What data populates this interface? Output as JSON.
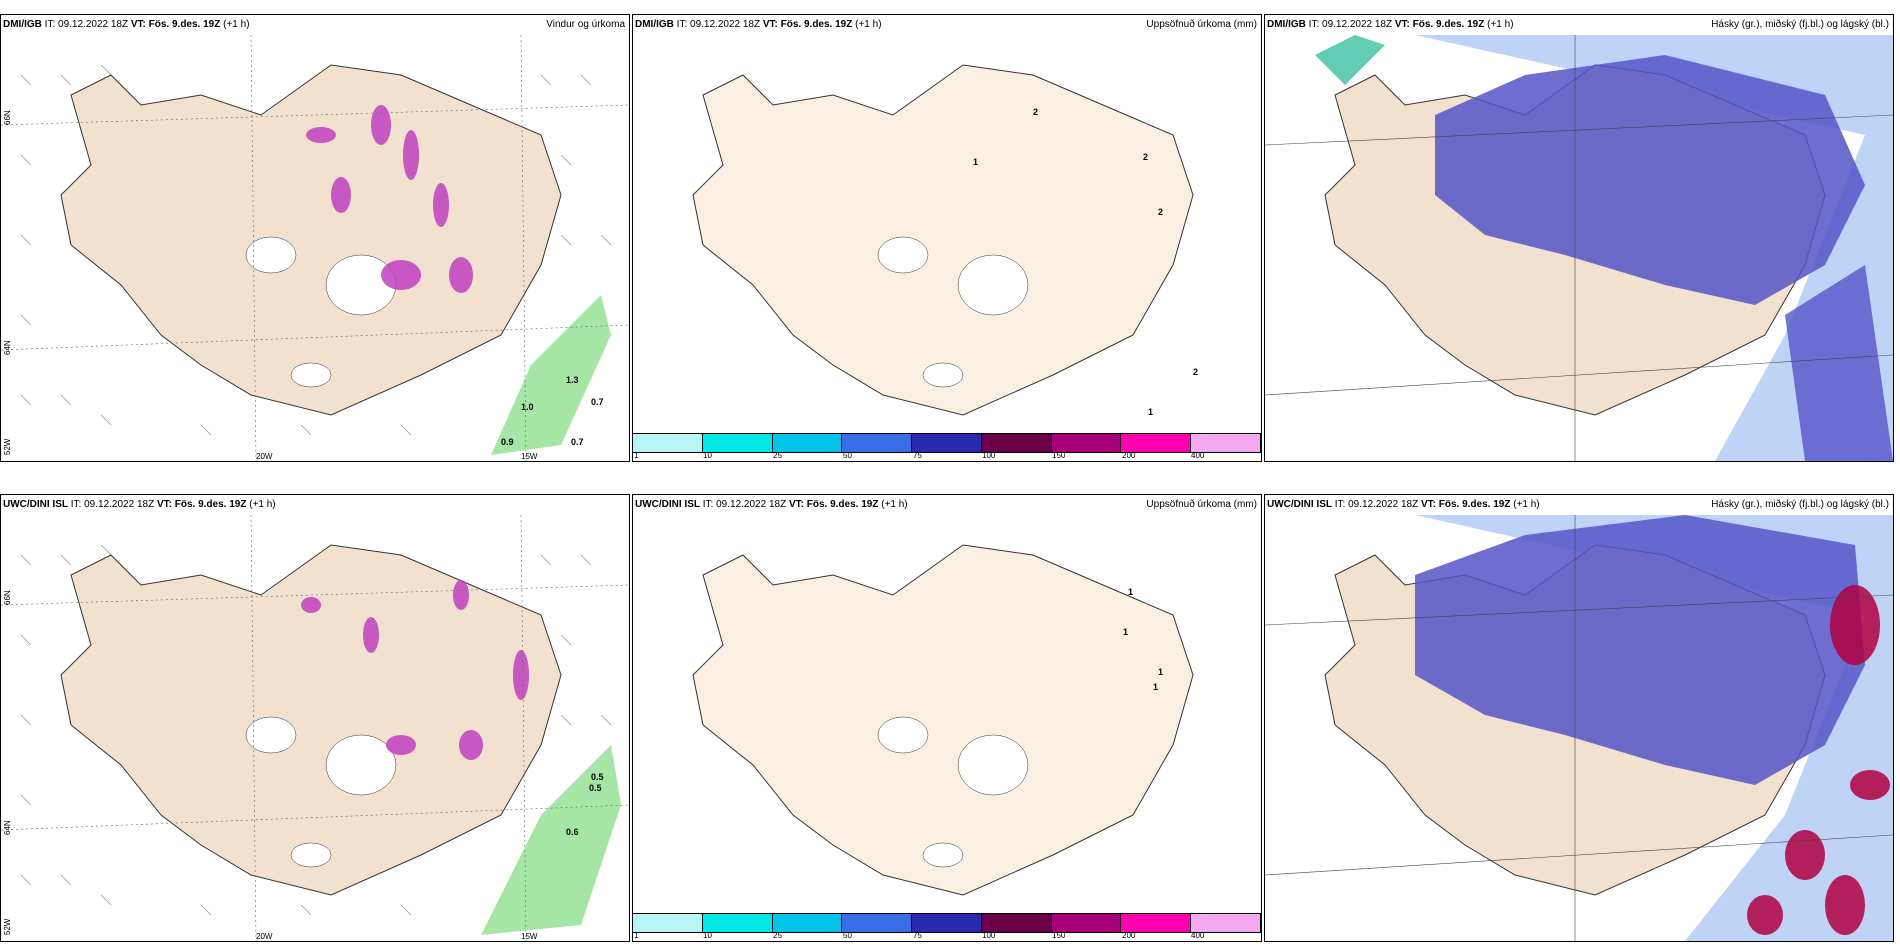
{
  "panels": [
    {
      "id": "p1",
      "source": "DMI/IGB",
      "it_label": "IT:",
      "it": "09.12.2022 18Z",
      "vt_label": "VT:",
      "vt": "Fös. 9.des. 19Z",
      "lead": "(+1 h)",
      "title": "Vindur og úrkoma",
      "lat_labels": [
        "66N",
        "64N",
        "52W"
      ],
      "lon_labels": [
        "20W",
        "15W"
      ],
      "values": [
        "0.9",
        "1.0",
        "0.7",
        "1.3",
        "0.7"
      ]
    },
    {
      "id": "p2",
      "source": "DMI/IGB",
      "it_label": "IT:",
      "it": "09.12.2022 18Z",
      "vt_label": "VT:",
      "vt": "Fös. 9.des. 19Z",
      "lead": "(+1 h)",
      "title": "Uppsöfnuð úrkoma (mm)",
      "values": [
        "2",
        "1",
        "2",
        "2",
        "2",
        "1"
      ]
    },
    {
      "id": "p3",
      "source": "DMI/IGB",
      "it_label": "IT:",
      "it": "09.12.2022 18Z",
      "vt_label": "VT:",
      "vt": "Fös. 9.des. 19Z",
      "lead": "(+1 h)",
      "title": "Hásky (gr.), miðský (fj.bl.) og lágský (bl.)"
    },
    {
      "id": "p4",
      "source": "UWC/DINI ISL",
      "it_label": "IT:",
      "it": "09.12.2022 18Z",
      "vt_label": "VT:",
      "vt": "Fös. 9.des. 19Z",
      "lead": "(+1 h)",
      "title": "",
      "lat_labels": [
        "66N",
        "64N",
        "52W"
      ],
      "lon_labels": [
        "20W",
        "15W"
      ],
      "values": [
        "0.5",
        "0.5",
        "0.6"
      ]
    },
    {
      "id": "p5",
      "source": "UWC/DINI ISL",
      "it_label": "IT:",
      "it": "09.12.2022 18Z",
      "vt_label": "VT:",
      "vt": "Fös. 9.des. 19Z",
      "lead": "(+1 h)",
      "title": "Uppsöfnuð úrkoma (mm)",
      "values": [
        "1",
        "1",
        "1",
        "1"
      ]
    },
    {
      "id": "p6",
      "source": "UWC/DINI ISL",
      "it_label": "IT:",
      "it": "09.12.2022 18Z",
      "vt_label": "VT:",
      "vt": "Fös. 9.des. 19Z",
      "lead": "(+1 h)",
      "title": "Hásky (gr.), miðský (fj.bl.) og lágský (bl.)"
    }
  ],
  "legend": {
    "ticks": [
      "1",
      "10",
      "25",
      "50",
      "75",
      "100",
      "150",
      "200",
      "400"
    ],
    "colors": [
      "#b8f5f5",
      "#00e8e8",
      "#00c4e8",
      "#3a6ee8",
      "#2a2ab0",
      "#6a0048",
      "#a8007a",
      "#ff00b0",
      "#f5a8f0"
    ]
  },
  "map_colors": {
    "land": "#f9efe2",
    "land_dark": "#e8d8c4",
    "low_cloud": "#5555c8",
    "mid_cloud": "#7fa8f0",
    "high_cloud": "#3cc0a0",
    "precip_pink": "#c040c0",
    "ocean_precip": "#8ee08e",
    "red_cell": "#b00040"
  }
}
